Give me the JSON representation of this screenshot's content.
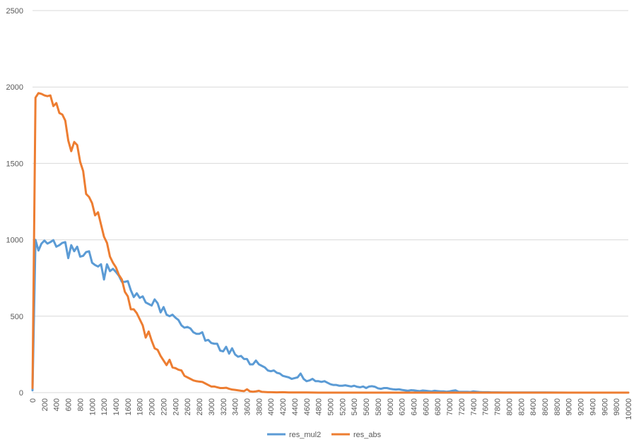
{
  "chart_data": {
    "type": "line",
    "title": "",
    "xlabel": "",
    "ylabel": "",
    "xlim": [
      0,
      10000
    ],
    "ylim": [
      0,
      2500
    ],
    "y_ticks": [
      0,
      500,
      1000,
      1500,
      2000,
      2500
    ],
    "x_tick_step": 200,
    "grid": "horizontal",
    "legend_position": "bottom",
    "series": [
      {
        "name": "res_mul2",
        "color": "#5B9BD5",
        "points": [
          [
            0,
            15
          ],
          [
            50,
            1000
          ],
          [
            100,
            930
          ],
          [
            150,
            975
          ],
          [
            200,
            995
          ],
          [
            250,
            975
          ],
          [
            300,
            985
          ],
          [
            350,
            998
          ],
          [
            400,
            955
          ],
          [
            450,
            965
          ],
          [
            500,
            980
          ],
          [
            550,
            985
          ],
          [
            600,
            880
          ],
          [
            650,
            965
          ],
          [
            700,
            925
          ],
          [
            750,
            955
          ],
          [
            800,
            890
          ],
          [
            850,
            895
          ],
          [
            900,
            920
          ],
          [
            950,
            925
          ],
          [
            1000,
            850
          ],
          [
            1050,
            835
          ],
          [
            1100,
            825
          ],
          [
            1150,
            840
          ],
          [
            1200,
            740
          ],
          [
            1250,
            840
          ],
          [
            1300,
            795
          ],
          [
            1350,
            810
          ],
          [
            1400,
            790
          ],
          [
            1450,
            765
          ],
          [
            1500,
            725
          ],
          [
            1550,
            725
          ],
          [
            1600,
            730
          ],
          [
            1650,
            670
          ],
          [
            1700,
            625
          ],
          [
            1750,
            650
          ],
          [
            1800,
            620
          ],
          [
            1850,
            630
          ],
          [
            1900,
            590
          ],
          [
            1950,
            580
          ],
          [
            2000,
            570
          ],
          [
            2050,
            610
          ],
          [
            2100,
            585
          ],
          [
            2150,
            525
          ],
          [
            2200,
            560
          ],
          [
            2250,
            510
          ],
          [
            2300,
            500
          ],
          [
            2350,
            510
          ],
          [
            2400,
            490
          ],
          [
            2450,
            475
          ],
          [
            2500,
            440
          ],
          [
            2550,
            425
          ],
          [
            2600,
            430
          ],
          [
            2650,
            420
          ],
          [
            2700,
            395
          ],
          [
            2750,
            385
          ],
          [
            2800,
            385
          ],
          [
            2850,
            395
          ],
          [
            2900,
            340
          ],
          [
            2950,
            345
          ],
          [
            3000,
            325
          ],
          [
            3050,
            320
          ],
          [
            3100,
            320
          ],
          [
            3150,
            275
          ],
          [
            3200,
            270
          ],
          [
            3250,
            300
          ],
          [
            3300,
            255
          ],
          [
            3350,
            290
          ],
          [
            3400,
            250
          ],
          [
            3450,
            235
          ],
          [
            3500,
            240
          ],
          [
            3550,
            220
          ],
          [
            3600,
            220
          ],
          [
            3650,
            185
          ],
          [
            3700,
            185
          ],
          [
            3750,
            210
          ],
          [
            3800,
            185
          ],
          [
            3850,
            175
          ],
          [
            3900,
            165
          ],
          [
            3950,
            145
          ],
          [
            4000,
            140
          ],
          [
            4050,
            145
          ],
          [
            4100,
            130
          ],
          [
            4150,
            125
          ],
          [
            4200,
            110
          ],
          [
            4250,
            105
          ],
          [
            4300,
            100
          ],
          [
            4350,
            90
          ],
          [
            4400,
            95
          ],
          [
            4450,
            100
          ],
          [
            4500,
            125
          ],
          [
            4550,
            90
          ],
          [
            4600,
            75
          ],
          [
            4650,
            80
          ],
          [
            4700,
            90
          ],
          [
            4750,
            75
          ],
          [
            4800,
            75
          ],
          [
            4850,
            70
          ],
          [
            4900,
            75
          ],
          [
            4950,
            65
          ],
          [
            5000,
            55
          ],
          [
            5050,
            50
          ],
          [
            5100,
            50
          ],
          [
            5150,
            45
          ],
          [
            5200,
            45
          ],
          [
            5250,
            48
          ],
          [
            5300,
            44
          ],
          [
            5350,
            40
          ],
          [
            5400,
            45
          ],
          [
            5450,
            38
          ],
          [
            5500,
            35
          ],
          [
            5550,
            40
          ],
          [
            5600,
            30
          ],
          [
            5650,
            40
          ],
          [
            5700,
            42
          ],
          [
            5750,
            38
          ],
          [
            5800,
            28
          ],
          [
            5850,
            25
          ],
          [
            5900,
            30
          ],
          [
            5950,
            30
          ],
          [
            6000,
            25
          ],
          [
            6050,
            22
          ],
          [
            6100,
            20
          ],
          [
            6150,
            22
          ],
          [
            6200,
            18
          ],
          [
            6250,
            15
          ],
          [
            6300,
            12
          ],
          [
            6350,
            16
          ],
          [
            6400,
            15
          ],
          [
            6450,
            12
          ],
          [
            6500,
            10
          ],
          [
            6550,
            14
          ],
          [
            6600,
            12
          ],
          [
            6650,
            10
          ],
          [
            6700,
            8
          ],
          [
            6750,
            12
          ],
          [
            6800,
            10
          ],
          [
            6850,
            8
          ],
          [
            6900,
            8
          ],
          [
            6950,
            6
          ],
          [
            7000,
            8
          ],
          [
            7050,
            12
          ],
          [
            7100,
            15
          ],
          [
            7150,
            6
          ],
          [
            7200,
            5
          ],
          [
            7250,
            5
          ],
          [
            7300,
            5
          ],
          [
            7350,
            4
          ],
          [
            7400,
            8
          ],
          [
            7450,
            6
          ],
          [
            7500,
            4
          ],
          [
            7550,
            3
          ],
          [
            7600,
            3
          ],
          [
            7650,
            3
          ],
          [
            7700,
            2
          ],
          [
            7800,
            2
          ],
          [
            7900,
            1
          ],
          [
            8000,
            1
          ],
          [
            8200,
            1
          ],
          [
            8400,
            1
          ],
          [
            8600,
            1
          ],
          [
            9000,
            0
          ],
          [
            9500,
            0
          ],
          [
            10000,
            0
          ]
        ]
      },
      {
        "name": "res_abs",
        "color": "#ED7D31",
        "points": [
          [
            0,
            30
          ],
          [
            50,
            1930
          ],
          [
            100,
            1960
          ],
          [
            150,
            1955
          ],
          [
            200,
            1945
          ],
          [
            250,
            1940
          ],
          [
            300,
            1945
          ],
          [
            350,
            1875
          ],
          [
            400,
            1895
          ],
          [
            450,
            1830
          ],
          [
            500,
            1820
          ],
          [
            550,
            1780
          ],
          [
            600,
            1650
          ],
          [
            650,
            1580
          ],
          [
            700,
            1640
          ],
          [
            750,
            1620
          ],
          [
            800,
            1510
          ],
          [
            850,
            1450
          ],
          [
            900,
            1300
          ],
          [
            950,
            1280
          ],
          [
            1000,
            1240
          ],
          [
            1050,
            1160
          ],
          [
            1100,
            1180
          ],
          [
            1150,
            1100
          ],
          [
            1200,
            1020
          ],
          [
            1250,
            980
          ],
          [
            1300,
            890
          ],
          [
            1350,
            850
          ],
          [
            1400,
            820
          ],
          [
            1450,
            770
          ],
          [
            1500,
            740
          ],
          [
            1550,
            660
          ],
          [
            1600,
            630
          ],
          [
            1650,
            545
          ],
          [
            1700,
            545
          ],
          [
            1750,
            520
          ],
          [
            1800,
            480
          ],
          [
            1850,
            440
          ],
          [
            1900,
            360
          ],
          [
            1950,
            400
          ],
          [
            2000,
            340
          ],
          [
            2050,
            290
          ],
          [
            2100,
            280
          ],
          [
            2150,
            240
          ],
          [
            2200,
            210
          ],
          [
            2250,
            180
          ],
          [
            2300,
            215
          ],
          [
            2350,
            165
          ],
          [
            2400,
            160
          ],
          [
            2450,
            150
          ],
          [
            2500,
            145
          ],
          [
            2550,
            110
          ],
          [
            2600,
            100
          ],
          [
            2650,
            90
          ],
          [
            2700,
            80
          ],
          [
            2750,
            75
          ],
          [
            2800,
            72
          ],
          [
            2850,
            70
          ],
          [
            2900,
            60
          ],
          [
            2950,
            50
          ],
          [
            3000,
            40
          ],
          [
            3050,
            40
          ],
          [
            3100,
            35
          ],
          [
            3150,
            30
          ],
          [
            3200,
            30
          ],
          [
            3250,
            32
          ],
          [
            3300,
            25
          ],
          [
            3350,
            20
          ],
          [
            3400,
            18
          ],
          [
            3450,
            15
          ],
          [
            3500,
            12
          ],
          [
            3550,
            10
          ],
          [
            3600,
            22
          ],
          [
            3650,
            8
          ],
          [
            3700,
            6
          ],
          [
            3750,
            8
          ],
          [
            3800,
            12
          ],
          [
            3850,
            5
          ],
          [
            3900,
            4
          ],
          [
            3950,
            3
          ],
          [
            4000,
            3
          ],
          [
            4100,
            2
          ],
          [
            4200,
            3
          ],
          [
            4300,
            1
          ],
          [
            4400,
            1
          ],
          [
            4600,
            1
          ],
          [
            4800,
            0
          ],
          [
            5000,
            0
          ],
          [
            6000,
            0
          ],
          [
            7000,
            0
          ],
          [
            8000,
            0
          ],
          [
            9000,
            0
          ],
          [
            10000,
            0
          ]
        ]
      }
    ]
  }
}
